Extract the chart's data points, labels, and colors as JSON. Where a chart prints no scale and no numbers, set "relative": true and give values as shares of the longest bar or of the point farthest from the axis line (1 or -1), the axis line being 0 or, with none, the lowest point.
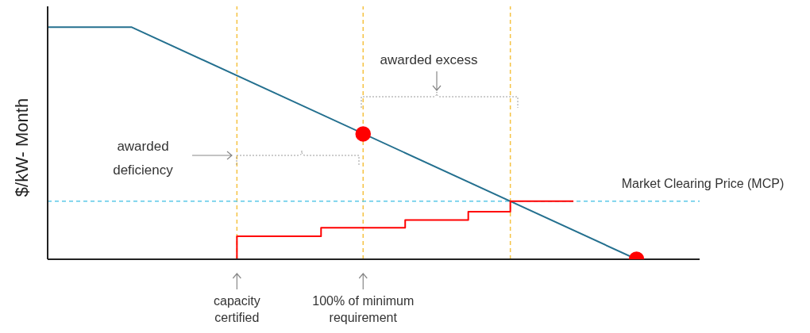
{
  "chart_data": {
    "type": "line",
    "relative": true,
    "ylabel": "$/kW- Month",
    "tick_labels": "x",
    "grid": "x",
    "legend": false,
    "categories": [
      null,
      null,
      null,
      null,
      null,
      null,
      null,
      null,
      null,
      "capacity certified",
      null,
      null,
      null,
      null,
      null,
      "100% of minimum requirement",
      null,
      null,
      null,
      null,
      null,
      null,
      null,
      null,
      null,
      null,
      null,
      null,
      null,
      null,
      null,
      null
    ],
    "series": [
      {
        "color": "#24708f",
        "values": [
          1,
          null,
          null,
          null,
          1,
          null,
          null,
          null,
          null,
          null,
          null,
          null,
          null,
          null,
          null,
          null,
          null,
          null,
          null,
          null,
          null,
          null,
          null,
          null,
          null,
          null,
          null,
          null,
          0,
          null,
          null,
          null
        ]
      },
      {
        "type": "step",
        "color": "#ff0000",
        "values": [
          0,
          null,
          null,
          null,
          null,
          null,
          null,
          null,
          null,
          0.099,
          null,
          null,
          null,
          0.136,
          null,
          null,
          null,
          0.169,
          null,
          null,
          0.205,
          null,
          0.25,
          null,
          null,
          0.25,
          null,
          null,
          null,
          null,
          null,
          null
        ]
      },
      {
        "type": "scatter",
        "color": "#ff0000",
        "marker": "circle",
        "values": [
          null,
          null,
          null,
          null,
          null,
          null,
          null,
          null,
          null,
          null,
          null,
          null,
          null,
          null,
          null,
          0.54,
          null,
          null,
          null,
          null,
          null,
          null,
          null,
          null,
          null,
          null,
          null,
          null,
          0,
          null,
          null,
          null
        ]
      }
    ],
    "ref_lines": [
      {
        "axis": "y",
        "value": 0.25,
        "label": "Market Clearing Price (MCP)",
        "color": "#5bc8e8",
        "line_style": "dashed"
      }
    ],
    "annotations": [
      "awarded excess",
      "awarded deficiency"
    ]
  }
}
